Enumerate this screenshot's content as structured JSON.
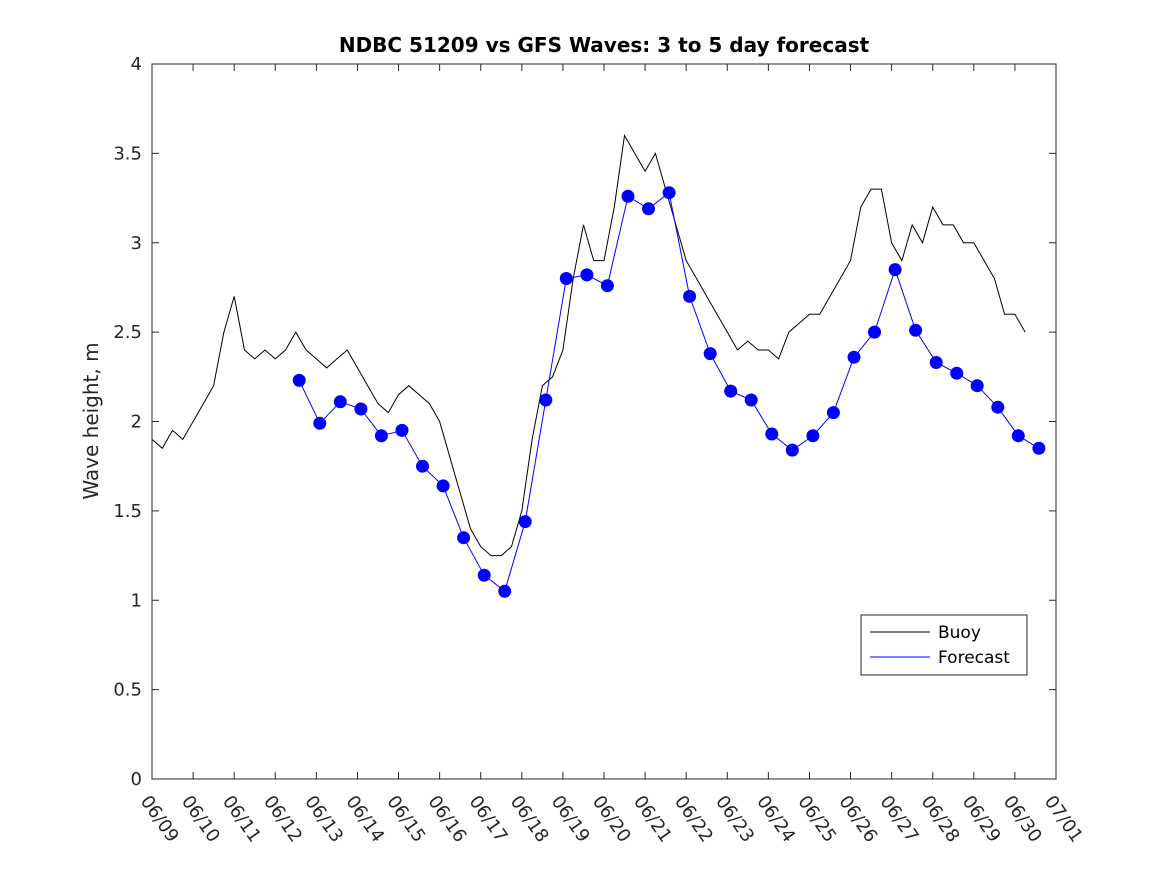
{
  "chart_data": {
    "type": "line",
    "title": "NDBC 51209 vs GFS Waves: 3 to 5 day forecast",
    "ylabel": "Wave height, m",
    "xlabel": "",
    "xlim": [
      "06/09",
      "07/01"
    ],
    "ylim": [
      0,
      4
    ],
    "y_ticks": [
      0,
      0.5,
      1,
      1.5,
      2,
      2.5,
      3,
      3.5,
      4
    ],
    "x_ticks": [
      "06/09",
      "06/10",
      "06/11",
      "06/12",
      "06/13",
      "06/14",
      "06/15",
      "06/16",
      "06/17",
      "06/18",
      "06/19",
      "06/20",
      "06/21",
      "06/22",
      "06/23",
      "06/24",
      "06/25",
      "06/26",
      "06/27",
      "06/28",
      "06/29",
      "06/30",
      "07/01"
    ],
    "grid": false,
    "legend": {
      "position": "bottom-right",
      "entries": [
        "Buoy",
        "Forecast"
      ]
    },
    "colors": {
      "buoy": "#000000",
      "forecast": "#0000ff"
    },
    "series": [
      {
        "name": "Buoy",
        "color": "#000000",
        "x": [
          "06/09 00:00",
          "06/09 06:00",
          "06/09 12:00",
          "06/09 18:00",
          "06/10 00:00",
          "06/10 06:00",
          "06/10 12:00",
          "06/10 18:00",
          "06/11 00:00",
          "06/11 06:00",
          "06/11 12:00",
          "06/11 18:00",
          "06/12 00:00",
          "06/12 06:00",
          "06/12 12:00",
          "06/12 18:00",
          "06/13 00:00",
          "06/13 06:00",
          "06/13 12:00",
          "06/13 18:00",
          "06/14 00:00",
          "06/14 06:00",
          "06/14 12:00",
          "06/14 18:00",
          "06/15 00:00",
          "06/15 06:00",
          "06/15 12:00",
          "06/15 18:00",
          "06/16 00:00",
          "06/16 06:00",
          "06/16 12:00",
          "06/16 18:00",
          "06/17 00:00",
          "06/17 06:00",
          "06/17 12:00",
          "06/17 18:00",
          "06/18 00:00",
          "06/18 06:00",
          "06/18 12:00",
          "06/18 18:00",
          "06/19 00:00",
          "06/19 06:00",
          "06/19 12:00",
          "06/19 18:00",
          "06/20 00:00",
          "06/20 06:00",
          "06/20 12:00",
          "06/20 18:00",
          "06/21 00:00",
          "06/21 06:00",
          "06/21 12:00",
          "06/21 18:00",
          "06/22 00:00",
          "06/22 06:00",
          "06/22 12:00",
          "06/22 18:00",
          "06/23 00:00",
          "06/23 06:00",
          "06/23 12:00",
          "06/23 18:00",
          "06/24 00:00",
          "06/24 06:00",
          "06/24 12:00",
          "06/24 18:00",
          "06/25 00:00",
          "06/25 06:00",
          "06/25 12:00",
          "06/25 18:00",
          "06/26 00:00",
          "06/26 06:00",
          "06/26 12:00",
          "06/26 18:00",
          "06/27 00:00",
          "06/27 06:00",
          "06/27 12:00",
          "06/27 18:00",
          "06/28 00:00",
          "06/28 06:00",
          "06/28 12:00",
          "06/28 18:00",
          "06/29 00:00",
          "06/29 06:00",
          "06/29 12:00",
          "06/29 18:00",
          "06/30 00:00",
          "06/30 06:00"
        ],
        "y": [
          1.9,
          1.85,
          1.95,
          1.9,
          2.0,
          2.1,
          2.2,
          2.5,
          2.7,
          2.4,
          2.35,
          2.4,
          2.35,
          2.4,
          2.5,
          2.4,
          2.35,
          2.3,
          2.35,
          2.4,
          2.3,
          2.2,
          2.1,
          2.05,
          2.15,
          2.2,
          2.15,
          2.1,
          2.0,
          1.8,
          1.6,
          1.4,
          1.3,
          1.25,
          1.25,
          1.3,
          1.5,
          1.9,
          2.2,
          2.25,
          2.4,
          2.8,
          3.1,
          2.9,
          2.9,
          3.2,
          3.6,
          3.5,
          3.4,
          3.5,
          3.3,
          3.1,
          2.9,
          2.8,
          2.7,
          2.6,
          2.5,
          2.4,
          2.45,
          2.4,
          2.4,
          2.35,
          2.5,
          2.55,
          2.6,
          2.6,
          2.7,
          2.8,
          2.9,
          3.2,
          3.3,
          3.3,
          3.0,
          2.9,
          3.1,
          3.0,
          3.2,
          3.1,
          3.1,
          3.0,
          3.0,
          2.9,
          2.8,
          2.6,
          2.6,
          2.5
        ]
      },
      {
        "name": "Forecast",
        "color": "#0000ff",
        "x": [
          "06/12 14:00",
          "06/13 02:00",
          "06/13 14:00",
          "06/14 02:00",
          "06/14 14:00",
          "06/15 02:00",
          "06/15 14:00",
          "06/16 02:00",
          "06/16 14:00",
          "06/17 02:00",
          "06/17 14:00",
          "06/18 02:00",
          "06/18 14:00",
          "06/19 02:00",
          "06/19 14:00",
          "06/20 02:00",
          "06/20 14:00",
          "06/21 02:00",
          "06/21 14:00",
          "06/22 02:00",
          "06/22 14:00",
          "06/23 02:00",
          "06/23 14:00",
          "06/24 02:00",
          "06/24 14:00",
          "06/25 02:00",
          "06/25 14:00",
          "06/26 02:00",
          "06/26 14:00",
          "06/27 02:00",
          "06/27 14:00",
          "06/28 02:00",
          "06/28 14:00",
          "06/29 02:00",
          "06/29 14:00",
          "06/30 02:00",
          "06/30 14:00"
        ],
        "y": [
          2.23,
          1.99,
          2.11,
          2.07,
          1.92,
          1.95,
          1.75,
          1.64,
          1.35,
          1.14,
          1.05,
          1.44,
          2.12,
          2.8,
          2.82,
          2.76,
          3.26,
          3.19,
          3.28,
          2.7,
          2.38,
          2.17,
          2.12,
          1.93,
          1.84,
          1.92,
          2.05,
          2.36,
          2.5,
          2.85,
          2.51,
          2.33,
          2.27,
          2.2,
          2.08,
          1.92,
          1.85
        ]
      }
    ]
  }
}
